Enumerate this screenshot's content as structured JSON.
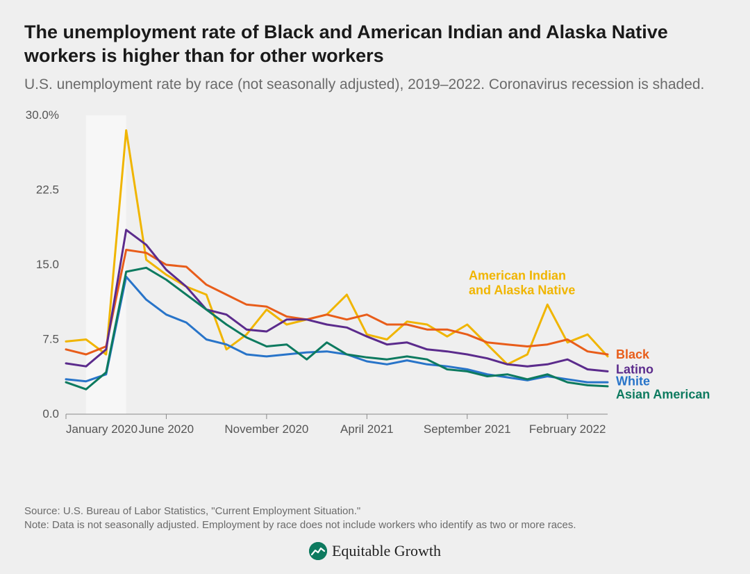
{
  "title": "The unemployment rate of Black and American Indian and Alaska Native workers is higher than for other workers",
  "subtitle": "U.S. unemployment rate by race (not seasonally adjusted), 2019–2022. Coronavirus recession is shaded.",
  "source_line": "Source: U.S. Bureau of Labor Statistics, \"Current Employment Situation.\"",
  "note_line": "Note: Data is not seasonally adjusted. Employment by race does not include workers who identify as two or more races.",
  "logo_text": "Equitable Growth",
  "chart": {
    "type": "line",
    "background_color": "#efefef",
    "recession_band": {
      "start_index": 1,
      "end_index": 3,
      "fill": "#f7f7f7"
    },
    "x": {
      "n_points": 28,
      "tick_indices": [
        0,
        5,
        10,
        15,
        20,
        25
      ],
      "tick_labels": [
        "January 2020",
        "June 2020",
        "November 2020",
        "April 2021",
        "September 2021",
        "February 2022"
      ],
      "tick_color": "#888888",
      "axis_color": "#888888",
      "label_fontsize": 17
    },
    "y": {
      "min": 0.0,
      "max": 30.0,
      "ticks": [
        0.0,
        7.5,
        15.0,
        22.5,
        30.0
      ],
      "tick_labels": [
        "0.0",
        "7.5",
        "15.0",
        "22.5",
        "30.0%"
      ],
      "tick_color": "#888888",
      "label_fontsize": 17
    },
    "line_width": 3,
    "series": [
      {
        "name": "American Indian and Alaska Native",
        "label_lines": [
          "American Indian",
          "and Alaska Native"
        ],
        "color": "#f0b500",
        "label_x_offset": -200,
        "label_y_value": 13.5,
        "values": [
          7.3,
          7.5,
          6.0,
          28.5,
          15.5,
          14.0,
          12.8,
          12.0,
          6.5,
          8.0,
          10.5,
          9.0,
          9.5,
          10.0,
          12.0,
          8.0,
          7.5,
          9.3,
          9.0,
          7.8,
          9.0,
          7.0,
          5.0,
          6.0,
          11.0,
          7.2,
          8.0,
          5.8
        ]
      },
      {
        "name": "Black",
        "color": "#e85d1a",
        "label_x_offset": 12,
        "label_y_value": 6.0,
        "values": [
          6.5,
          6.0,
          6.8,
          16.5,
          16.2,
          15.0,
          14.8,
          13.0,
          12.0,
          11.0,
          10.8,
          9.8,
          9.5,
          10.0,
          9.5,
          10.0,
          9.0,
          9.0,
          8.5,
          8.5,
          8.0,
          7.2,
          7.0,
          6.8,
          7.0,
          7.5,
          6.3,
          6.0
        ]
      },
      {
        "name": "Latino",
        "color": "#5b2b8c",
        "label_x_offset": 12,
        "label_y_value": 4.5,
        "values": [
          5.1,
          4.8,
          6.5,
          18.5,
          17.0,
          14.5,
          12.8,
          10.5,
          10.0,
          8.5,
          8.3,
          9.5,
          9.5,
          9.0,
          8.7,
          7.8,
          7.0,
          7.2,
          6.5,
          6.3,
          6.0,
          5.6,
          5.0,
          4.8,
          5.0,
          5.5,
          4.5,
          4.3
        ]
      },
      {
        "name": "White",
        "color": "#2874c9",
        "label_x_offset": 12,
        "label_y_value": 3.3,
        "values": [
          3.5,
          3.3,
          4.0,
          13.8,
          11.5,
          10.0,
          9.2,
          7.5,
          7.0,
          6.0,
          5.8,
          6.0,
          6.2,
          6.3,
          6.0,
          5.3,
          5.0,
          5.4,
          5.0,
          4.8,
          4.5,
          4.0,
          3.7,
          3.4,
          3.8,
          3.5,
          3.2,
          3.2
        ]
      },
      {
        "name": "Asian American",
        "color": "#0d7a5f",
        "label_x_offset": 12,
        "label_y_value": 2.0,
        "values": [
          3.2,
          2.5,
          4.2,
          14.3,
          14.7,
          13.5,
          12.0,
          10.5,
          9.0,
          7.7,
          6.8,
          7.0,
          5.5,
          7.2,
          6.0,
          5.7,
          5.5,
          5.8,
          5.5,
          4.5,
          4.3,
          3.8,
          4.0,
          3.5,
          4.0,
          3.2,
          2.9,
          2.8
        ]
      }
    ]
  }
}
